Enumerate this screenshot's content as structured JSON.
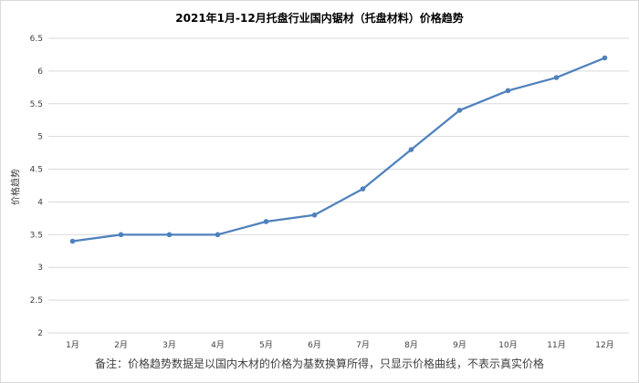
{
  "chart_data": {
    "type": "line",
    "title": "2021年1月-12月托盘行业国内锯材（托盘材料）价格趋势",
    "ylabel": "价格趋势",
    "xlabel": "",
    "categories": [
      "1月",
      "2月",
      "3月",
      "4月",
      "5月",
      "6月",
      "7月",
      "8月",
      "9月",
      "10月",
      "11月",
      "12月"
    ],
    "series": [
      {
        "values": [
          3.4,
          3.5,
          3.5,
          3.5,
          3.7,
          3.8,
          4.2,
          4.8,
          5.4,
          5.7,
          5.9,
          6.2
        ]
      }
    ],
    "ylim": [
      2,
      6.5
    ],
    "yticks": [
      "2",
      "2.5",
      "3",
      "3.5",
      "4",
      "4.5",
      "5",
      "5.5",
      "6",
      "6.5"
    ],
    "grid": true,
    "legend": "none",
    "note": "备注：价格趋势数据是以国内木材的价格为基数换算所得，只显示价格曲线，不表示真实价格",
    "colors": {
      "line": "#4f81bd",
      "grid": "#d9d9d9",
      "text": "#404040"
    }
  }
}
